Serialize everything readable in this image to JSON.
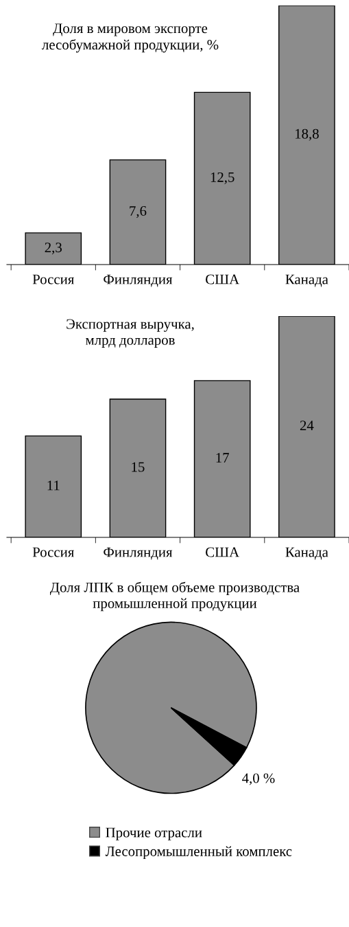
{
  "chart_data": [
    {
      "type": "bar",
      "title": "Доля в мировом экспорте\nлесобумажной продукции, %",
      "categories": [
        "Россия",
        "Финляндия",
        "США",
        "Канада"
      ],
      "values": [
        2.3,
        7.6,
        12.5,
        18.8
      ],
      "value_labels": [
        "2,3",
        "7,6",
        "12,5",
        "18,8"
      ],
      "color": "#8c8c8c"
    },
    {
      "type": "bar",
      "title": "Экспортная выручка,\nмлрд долларов",
      "categories": [
        "Россия",
        "Финляндия",
        "США",
        "Канада"
      ],
      "values": [
        11,
        15,
        17,
        24
      ],
      "data_labels": true,
      "color": "#8c8c8c"
    },
    {
      "type": "pie",
      "title": "Доля ЛПК в общем объеме производства\nпромышленной продукции",
      "categories": [
        "Прочие отрасли",
        "Лесопромышленный комплекс"
      ],
      "values": [
        96,
        4
      ],
      "value_labels": [
        null,
        "4,0 %"
      ],
      "colors": [
        "#8c8c8c",
        "#000000"
      ],
      "legend": "bottom"
    }
  ]
}
